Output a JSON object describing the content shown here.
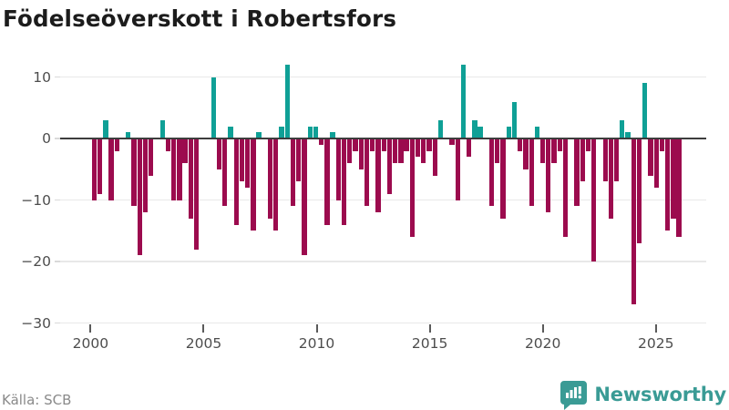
{
  "title": "Födelseöverskott i Robertsfors",
  "source": "Källa: SCB",
  "brand": {
    "name": "Newsworthy"
  },
  "colors": {
    "positive": "#0fa096",
    "negative": "#9c0b4e",
    "brand_teal": "#3a9b95",
    "zero_line": "#3d3d3d",
    "gridline": "#e8e8e8",
    "axis_text": "#4d4d4d",
    "title_text": "#1c1c1c",
    "source_text": "#8a8a8a"
  },
  "chart_data": {
    "type": "bar",
    "title": "Födelseöverskott i Robertsfors",
    "xlabel": "",
    "ylabel": "",
    "x_unit": "quarter",
    "start_year": 2000,
    "ylim": [
      -30,
      13
    ],
    "y_ticks": [
      10,
      0,
      -10,
      -20,
      -30
    ],
    "x_ticks": [
      2000,
      2005,
      2010,
      2015,
      2020,
      2025
    ],
    "grid": "horizontal",
    "legend": "none",
    "series": [
      {
        "year": 2000,
        "values": [
          -10,
          -9,
          3,
          -10
        ]
      },
      {
        "year": 2001,
        "values": [
          -2,
          0,
          1,
          -11
        ]
      },
      {
        "year": 2002,
        "values": [
          -19,
          -12,
          -6,
          0
        ]
      },
      {
        "year": 2003,
        "values": [
          3,
          -2,
          -10,
          -10
        ]
      },
      {
        "year": 2004,
        "values": [
          -4,
          -13,
          -18,
          0
        ]
      },
      {
        "year": 2005,
        "values": [
          0,
          10,
          -5,
          -11
        ]
      },
      {
        "year": 2006,
        "values": [
          2,
          -14,
          -7,
          -8
        ]
      },
      {
        "year": 2007,
        "values": [
          -15,
          1,
          0,
          -13
        ]
      },
      {
        "year": 2008,
        "values": [
          -15,
          2,
          12,
          -11
        ]
      },
      {
        "year": 2009,
        "values": [
          -7,
          -19,
          2,
          2
        ]
      },
      {
        "year": 2010,
        "values": [
          -1,
          -14,
          1,
          -10
        ]
      },
      {
        "year": 2011,
        "values": [
          -14,
          -4,
          -2,
          -5
        ]
      },
      {
        "year": 2012,
        "values": [
          -11,
          -2,
          -12,
          -2
        ]
      },
      {
        "year": 2013,
        "values": [
          -9,
          -4,
          -4,
          -2
        ]
      },
      {
        "year": 2014,
        "values": [
          -16,
          -3,
          -4,
          -2
        ]
      },
      {
        "year": 2015,
        "values": [
          -6,
          3,
          0,
          -1
        ]
      },
      {
        "year": 2016,
        "values": [
          -10,
          12,
          -3,
          3
        ]
      },
      {
        "year": 2017,
        "values": [
          2,
          0,
          -11,
          -4
        ]
      },
      {
        "year": 2018,
        "values": [
          -13,
          2,
          6,
          -2
        ]
      },
      {
        "year": 2019,
        "values": [
          -5,
          -11,
          2,
          -4
        ]
      },
      {
        "year": 2020,
        "values": [
          -12,
          -4,
          -2,
          -16
        ]
      },
      {
        "year": 2021,
        "values": [
          0,
          -11,
          -7,
          -2
        ]
      },
      {
        "year": 2022,
        "values": [
          -20,
          0,
          -7,
          -13
        ]
      },
      {
        "year": 2023,
        "values": [
          -7,
          3,
          1,
          -27
        ]
      },
      {
        "year": 2024,
        "values": [
          -17,
          9,
          -6,
          -8
        ]
      },
      {
        "year": 2025,
        "values": [
          -2,
          -15,
          -13,
          -16
        ]
      }
    ]
  }
}
